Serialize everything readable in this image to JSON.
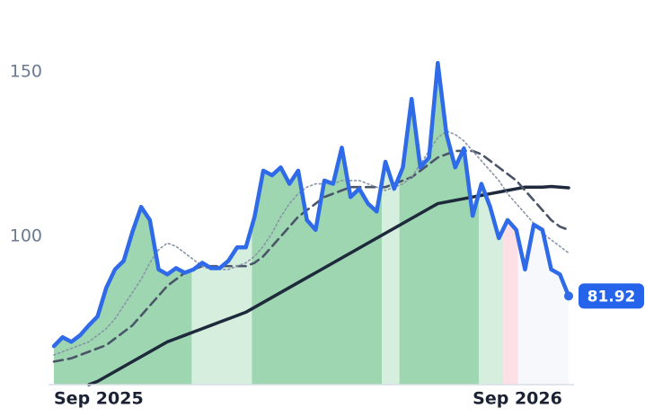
{
  "chart_data": {
    "type": "line",
    "ylim": [
      55,
      160
    ],
    "yticks": [
      100,
      150
    ],
    "xlim": [
      0,
      59
    ],
    "xticks": [
      {
        "value": 0,
        "label": "Sep 2025"
      },
      {
        "value": 48,
        "label": "Sep 2026"
      }
    ],
    "bands": [
      {
        "from": 0,
        "to": 15.8,
        "color": "#9dd6b1"
      },
      {
        "from": 15.8,
        "to": 22.7,
        "color": "#d5eedd"
      },
      {
        "from": 22.7,
        "to": 37.6,
        "color": "#9dd6b1"
      },
      {
        "from": 37.6,
        "to": 39.6,
        "color": "#d5eedd"
      },
      {
        "from": 39.6,
        "to": 48.7,
        "color": "#9dd6b1"
      },
      {
        "from": 48.7,
        "to": 51.5,
        "color": "#d5eedd"
      },
      {
        "from": 51.5,
        "to": 53.2,
        "color": "#fde0e6"
      },
      {
        "from": 53.2,
        "to": 59,
        "color": "#f6f8fb"
      }
    ],
    "series": [
      {
        "color": "#2f6ae8",
        "style": "solid-thick",
        "values": [
          66.7,
          69.4,
          68,
          70,
          73,
          75.7,
          84.4,
          90,
          92.6,
          101.4,
          109,
          105,
          90,
          88.5,
          90.4,
          89,
          90,
          92,
          90.4,
          90.4,
          92.6,
          96.7,
          96.7,
          106,
          120,
          118.6,
          121,
          116,
          120,
          105,
          102,
          117,
          116,
          127,
          112,
          114.5,
          110,
          107.6,
          122.7,
          114.5,
          121,
          141.8,
          121,
          124,
          152.7,
          131,
          121,
          126.8,
          106.3,
          116,
          109,
          99.5,
          105,
          102,
          90,
          103.6,
          102,
          90,
          88.5,
          81.92
        ]
      },
      {
        "color": "#8a94a6",
        "style": "dotted",
        "values": [
          64,
          65,
          66,
          67,
          68,
          70,
          72,
          75,
          79,
          83,
          87,
          92,
          96,
          98,
          97,
          95,
          93,
          91,
          90,
          90,
          90,
          91,
          92,
          94,
          97,
          101,
          106,
          110,
          113,
          115,
          116,
          116,
          116,
          117,
          117,
          117,
          116,
          115,
          114,
          115,
          116,
          118,
          122,
          126,
          130,
          132,
          131,
          129,
          126,
          123,
          120,
          117,
          113,
          110,
          107,
          104,
          101,
          99,
          97,
          95
        ]
      },
      {
        "color": "#4b5568",
        "style": "dashed",
        "values": [
          62,
          62.5,
          63,
          64,
          65,
          66,
          67,
          69,
          71,
          73,
          76,
          79,
          82,
          85,
          87,
          89,
          90,
          91,
          91,
          91,
          91,
          91,
          91,
          92,
          94,
          97,
          100,
          103,
          106,
          108,
          110,
          112,
          113,
          114,
          115,
          115,
          115,
          115,
          115,
          116,
          117,
          118,
          120,
          122,
          124,
          125,
          126,
          126,
          126,
          125,
          123,
          121,
          119,
          117,
          114,
          111,
          108,
          105,
          103,
          102
        ]
      },
      {
        "color": "#1e293b",
        "style": "solid",
        "values": [
          null,
          null,
          null,
          null,
          55,
          56,
          57.5,
          59,
          60.5,
          62,
          63.5,
          65,
          66.5,
          68,
          69,
          70,
          71,
          72,
          73,
          74,
          75,
          76,
          77,
          78.5,
          80,
          81.5,
          83,
          84.5,
          86,
          87.5,
          89,
          90.5,
          92,
          93.5,
          95,
          96.5,
          98,
          99.5,
          101,
          102.5,
          104,
          105.5,
          107,
          108.5,
          110,
          110.5,
          111,
          111.5,
          112,
          112.5,
          113,
          113.5,
          114,
          114.5,
          115,
          115,
          115,
          115.2,
          115,
          114.8
        ]
      }
    ]
  }
}
